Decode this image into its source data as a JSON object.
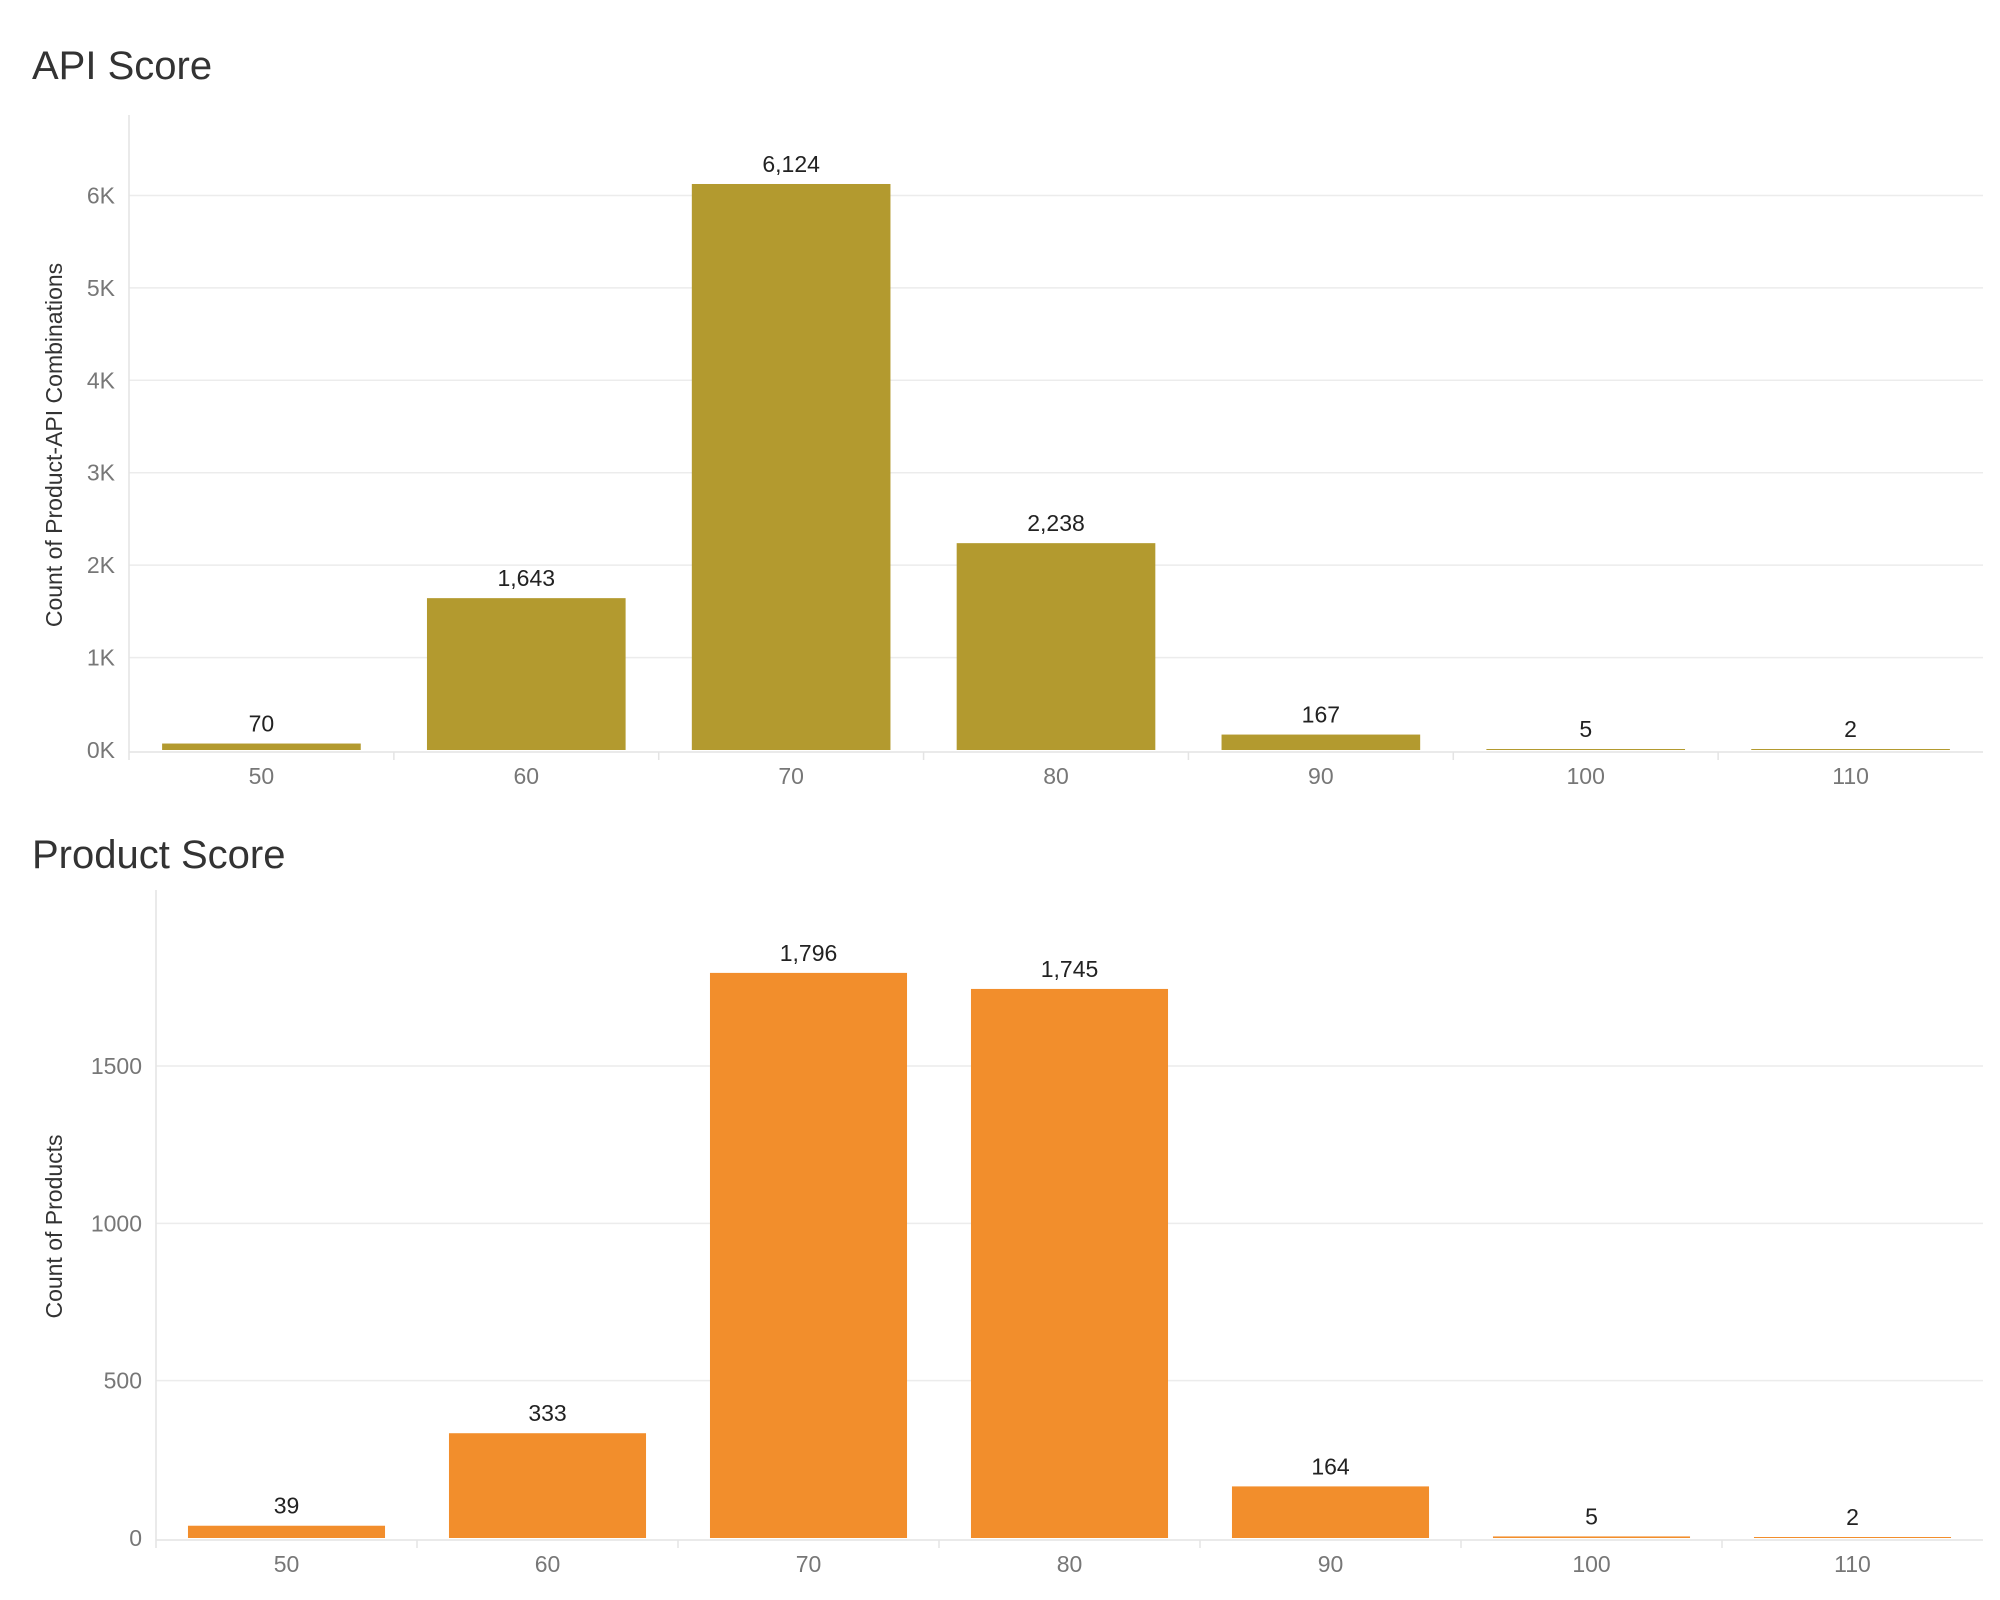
{
  "chart_data": [
    {
      "type": "bar",
      "title": "API Score",
      "xlabel": "",
      "ylabel": "Count of Product-API Combinations",
      "categories": [
        "50",
        "60",
        "70",
        "80",
        "90",
        "100",
        "110"
      ],
      "values": [
        70,
        1643,
        6124,
        2238,
        167,
        5,
        2
      ],
      "data_labels": [
        "70",
        "1,643",
        "6,124",
        "2,238",
        "167",
        "5",
        "2"
      ],
      "yticks": [
        0,
        1000,
        2000,
        3000,
        4000,
        5000,
        6000
      ],
      "ytick_labels": [
        "0K",
        "1K",
        "2K",
        "3K",
        "4K",
        "5K",
        "6K"
      ],
      "ylim": [
        0,
        6600
      ],
      "color": "#B39A2F",
      "grid": true,
      "legend": "none"
    },
    {
      "type": "bar",
      "title": "Product Score",
      "xlabel": "",
      "ylabel": "Count of Products",
      "categories": [
        "50",
        "60",
        "70",
        "80",
        "90",
        "100",
        "110"
      ],
      "values": [
        39,
        333,
        1796,
        1745,
        164,
        5,
        2
      ],
      "data_labels": [
        "39",
        "333",
        "1,796",
        "1,745",
        "164",
        "5",
        "2"
      ],
      "yticks": [
        0,
        500,
        1000,
        1500
      ],
      "ytick_labels": [
        "0",
        "500",
        "1000",
        "1500"
      ],
      "ylim": [
        0,
        1980
      ],
      "color": "#F28E2C",
      "grid": true,
      "legend": "none"
    }
  ]
}
